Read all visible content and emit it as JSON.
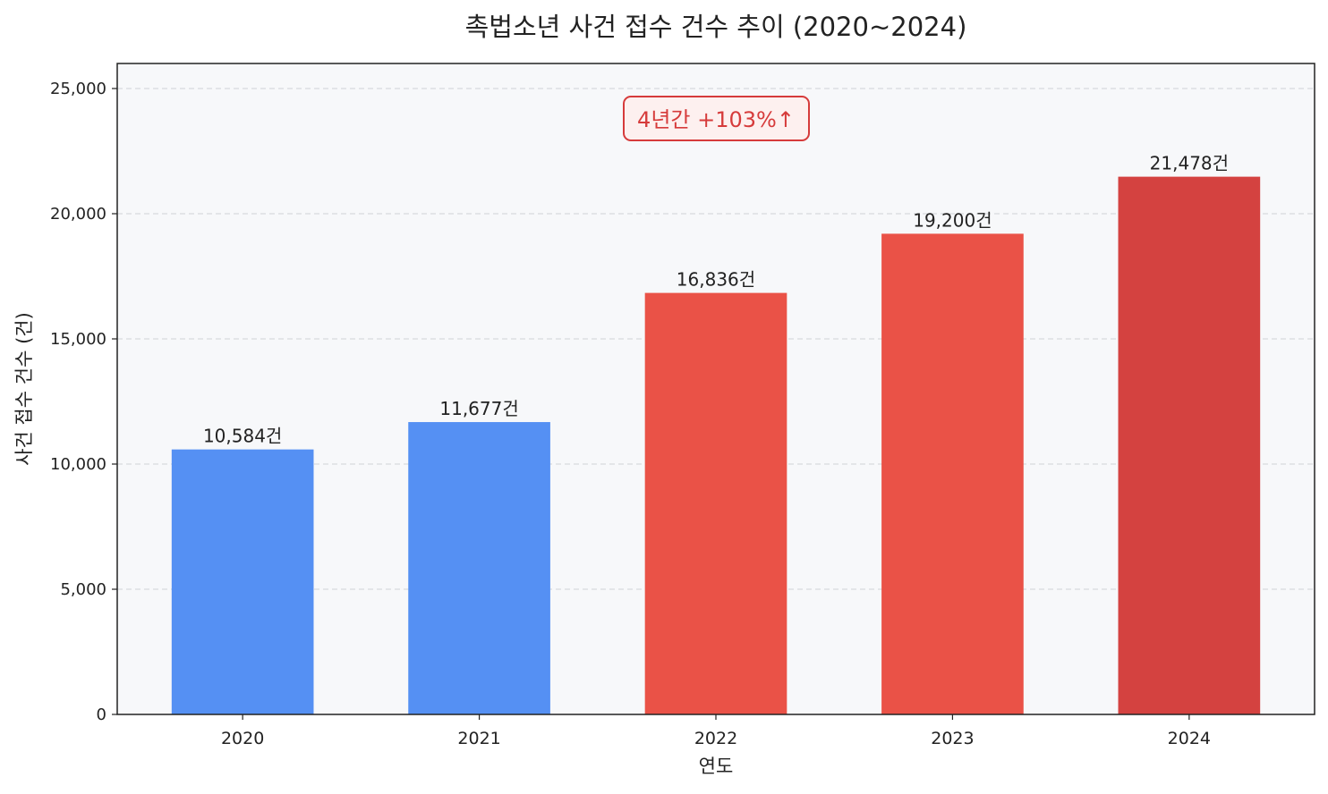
{
  "chart_data": {
    "type": "bar",
    "title": "촉법소년 사건 접수 건수 추이 (2020~2024)",
    "xlabel": "연도",
    "ylabel": "사건 접수 건수 (건)",
    "categories": [
      "2020",
      "2021",
      "2022",
      "2023",
      "2024"
    ],
    "values": [
      10584,
      11677,
      16836,
      19200,
      21478
    ],
    "data_labels": [
      "10,584건",
      "11,677건",
      "16,836건",
      "19,200건",
      "21,478건"
    ],
    "bar_colors": [
      "#5590f3",
      "#5590f3",
      "#ea5247",
      "#ea5247",
      "#d44240"
    ],
    "ylim": [
      0,
      26000
    ],
    "yticks": [
      0,
      5000,
      10000,
      15000,
      20000,
      25000
    ],
    "ytick_labels": [
      "0",
      "5,000",
      "10,000",
      "15,000",
      "20,000",
      "25,000"
    ],
    "grid": "y dashed",
    "background": "#f7f8fa",
    "annotation": {
      "text": "4년간 +103%↑",
      "color": "#d63b3b",
      "fill": "#fdf0ef"
    }
  }
}
